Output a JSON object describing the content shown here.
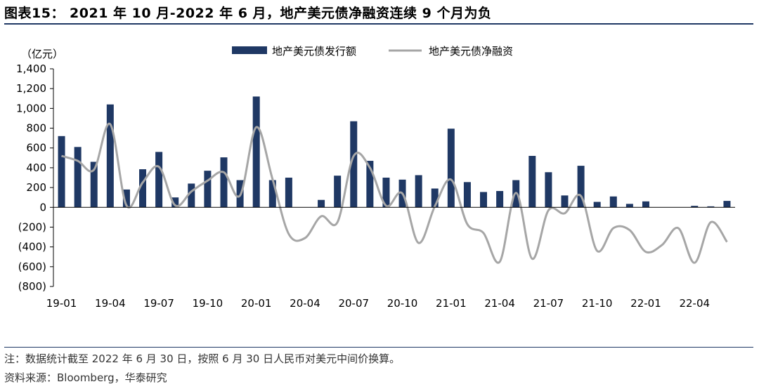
{
  "header": {
    "title": "图表15：  2021 年 10 月-2022 年 6 月，地产美元债净融资连续 9 个月为负"
  },
  "footer": {
    "note": "注：数据统计截至 2022 年 6 月 30 日，按照 6 月 30 日人民币对美元中间价换算。",
    "source": "资料来源：Bloomberg，华泰研究"
  },
  "colors": {
    "bar": "#1f3864",
    "line": "#a6a6a6",
    "axis": "#000000"
  },
  "chart_data": {
    "type": "bar+line",
    "unit_label": "（亿元）",
    "ylim": [
      -800,
      1400
    ],
    "yticks": [
      1400,
      1200,
      1000,
      800,
      600,
      400,
      200,
      0,
      -200,
      -400,
      -600,
      -800
    ],
    "ytick_labels": [
      "1,400",
      "1,200",
      "1,000",
      "800",
      "600",
      "400",
      "200",
      "0",
      "(200)",
      "(400)",
      "(600)",
      "(800)"
    ],
    "categories": [
      "19-01",
      "19-02",
      "19-03",
      "19-04",
      "19-05",
      "19-06",
      "19-07",
      "19-08",
      "19-09",
      "19-10",
      "19-11",
      "19-12",
      "20-01",
      "20-02",
      "20-03",
      "20-04",
      "20-05",
      "20-06",
      "20-07",
      "20-08",
      "20-09",
      "20-10",
      "20-11",
      "20-12",
      "21-01",
      "21-02",
      "21-03",
      "21-04",
      "21-05",
      "21-06",
      "21-07",
      "21-08",
      "21-09",
      "21-10",
      "21-11",
      "21-12",
      "22-01",
      "22-02",
      "22-03",
      "22-04",
      "22-05",
      "22-06"
    ],
    "xtick_labels": [
      "19-01",
      "19-04",
      "19-07",
      "19-10",
      "20-01",
      "20-04",
      "20-07",
      "20-10",
      "21-01",
      "21-04",
      "21-07",
      "21-10",
      "22-01",
      "22-04"
    ],
    "xtick_every": 3,
    "series": [
      {
        "name": "地产美元债发行额",
        "kind": "bar",
        "values": [
          720,
          610,
          460,
          1040,
          180,
          385,
          560,
          100,
          240,
          370,
          505,
          275,
          1120,
          275,
          300,
          0,
          75,
          320,
          870,
          470,
          300,
          280,
          325,
          190,
          795,
          255,
          155,
          165,
          275,
          520,
          355,
          120,
          420,
          55,
          110,
          35,
          60,
          0,
          0,
          15,
          10,
          65
        ]
      },
      {
        "name": "地产美元债净融资",
        "kind": "line",
        "values": [
          520,
          470,
          380,
          840,
          20,
          250,
          410,
          20,
          160,
          270,
          355,
          120,
          810,
          285,
          -270,
          -310,
          -90,
          -150,
          520,
          400,
          15,
          140,
          -360,
          10,
          280,
          -170,
          -260,
          -550,
          145,
          -520,
          -30,
          -60,
          115,
          -440,
          -210,
          -230,
          -450,
          -380,
          -210,
          -560,
          -150,
          -350
        ]
      }
    ],
    "legend": [
      "地产美元债发行额",
      "地产美元债净融资"
    ],
    "legend_position": "top-center",
    "grid": false
  }
}
